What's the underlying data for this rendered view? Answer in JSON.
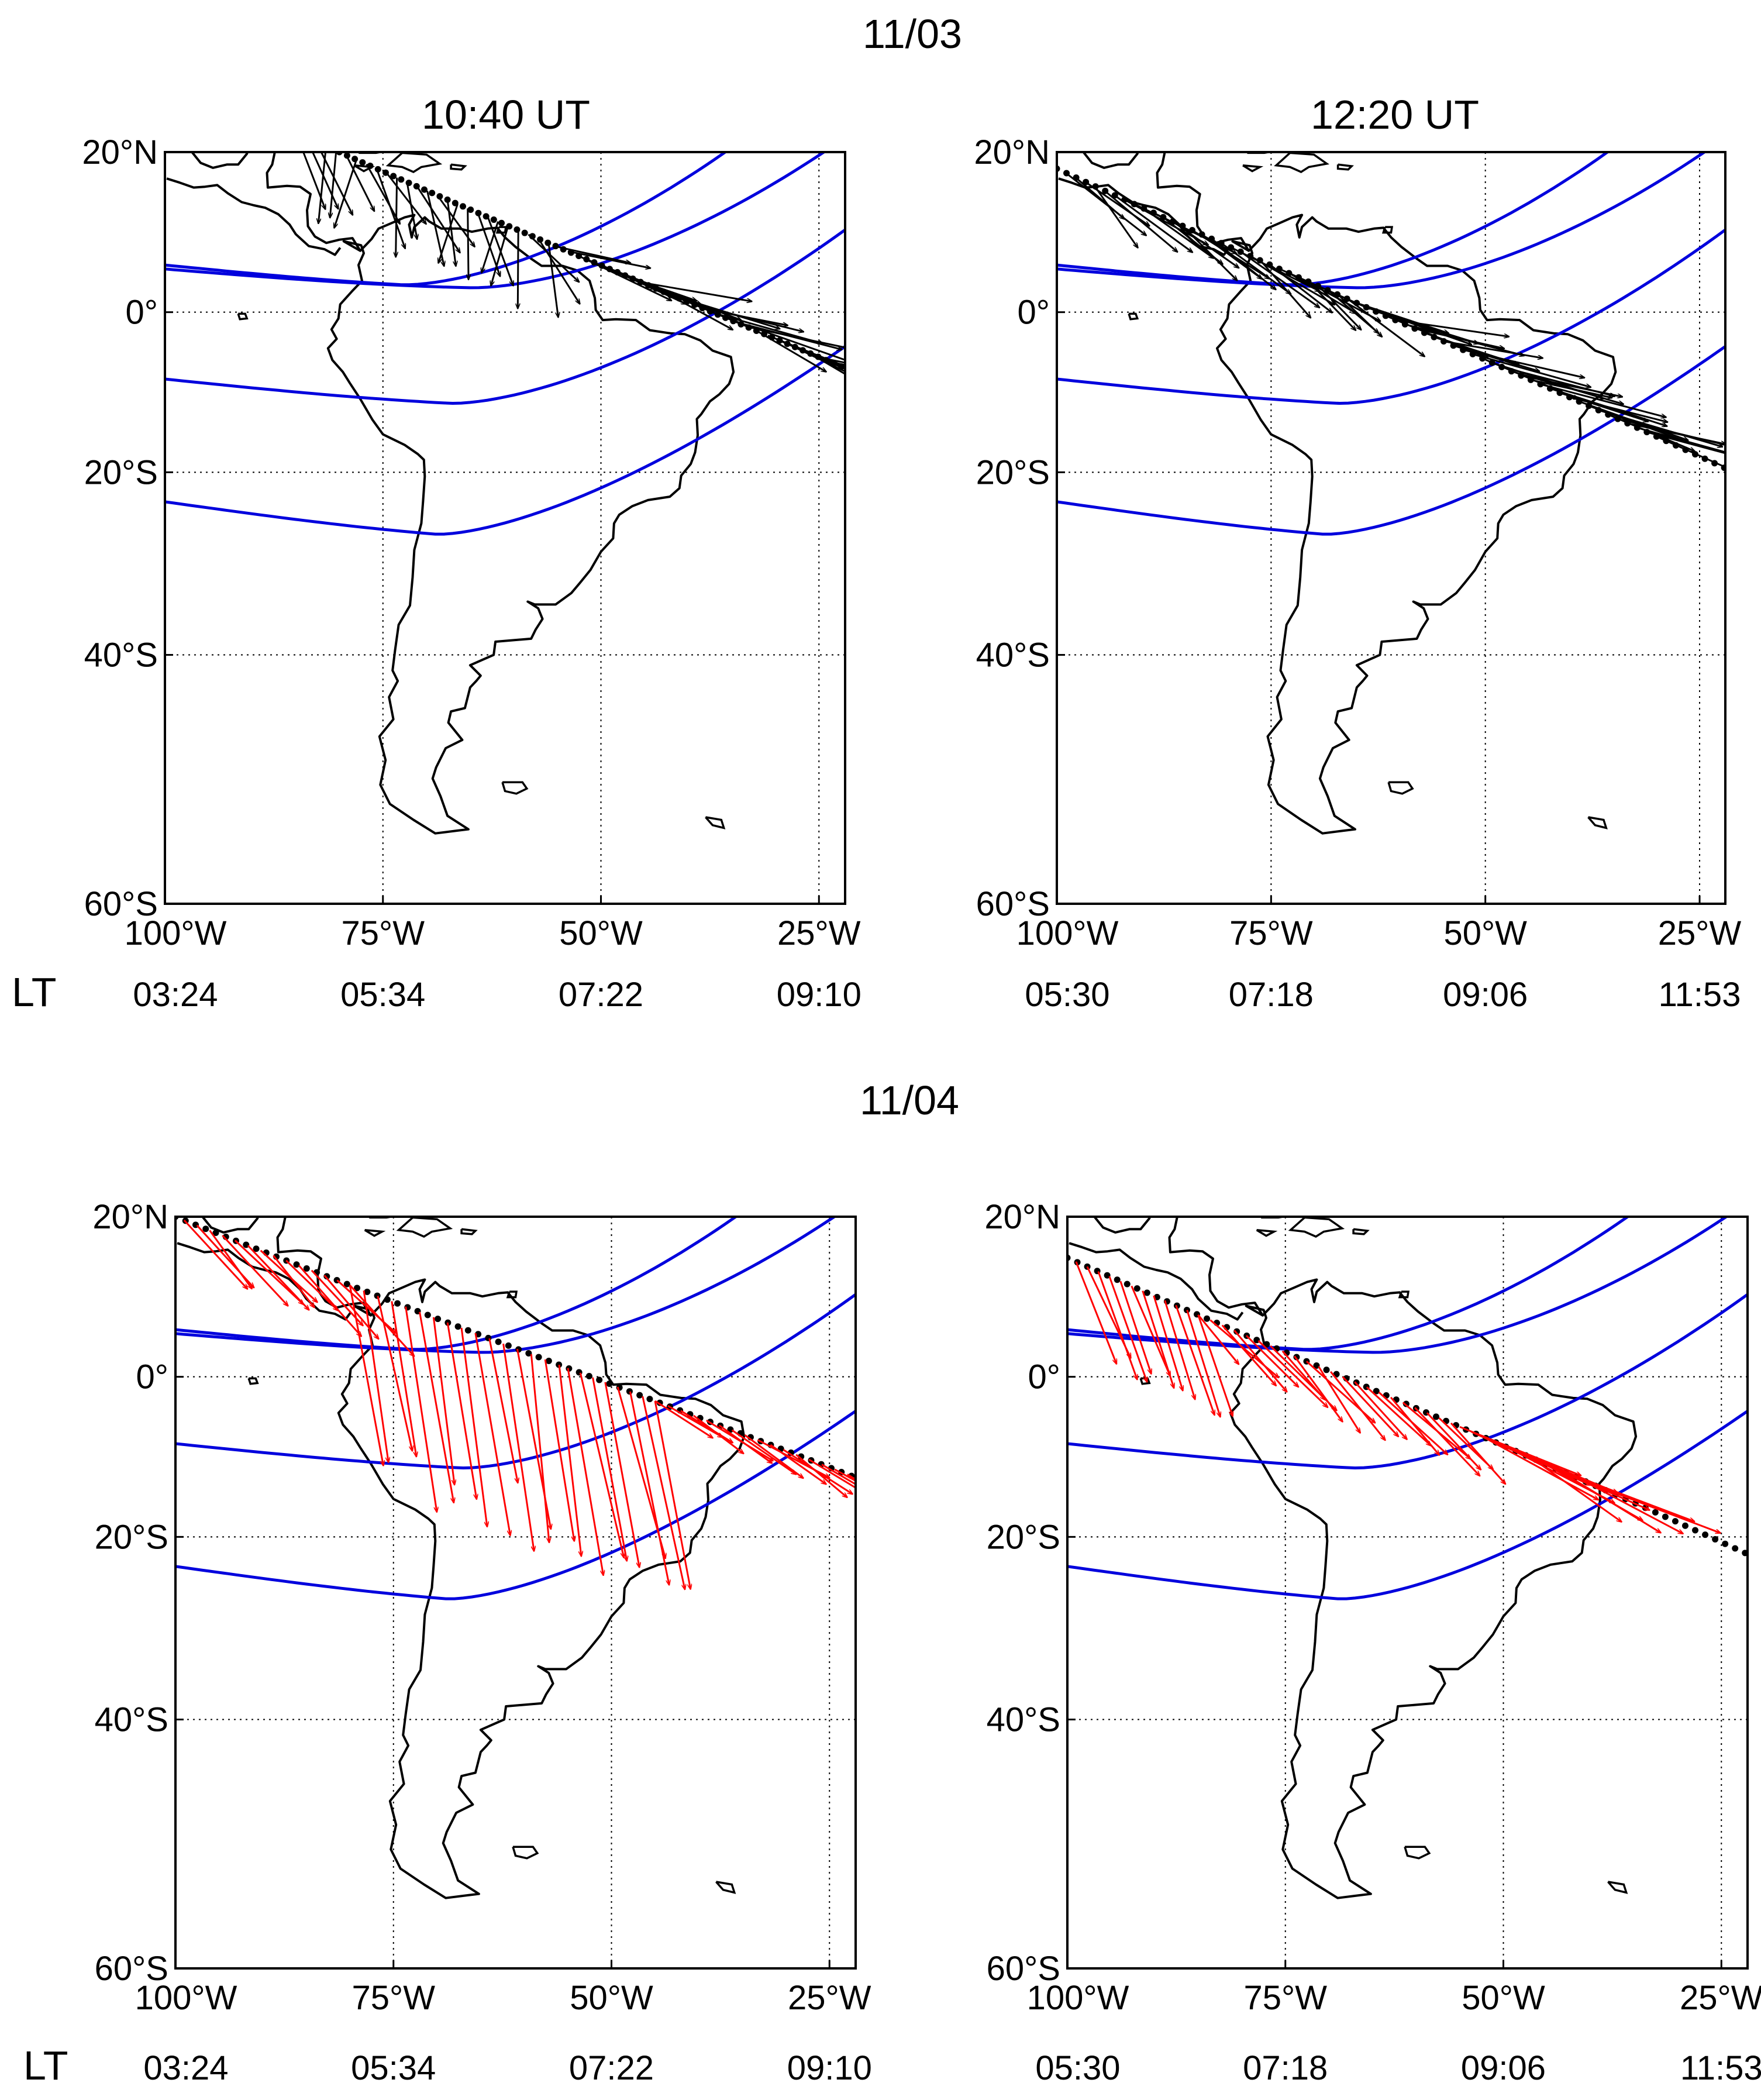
{
  "figure": {
    "date_labels": [
      "11/03",
      "11/04"
    ],
    "lt_label": "LT",
    "lat_ticks": [
      "20°N",
      "0°",
      "20°S",
      "40°S",
      "60°S"
    ],
    "lon_ticks": [
      "100°W",
      "75°W",
      "50°W",
      "25°W"
    ],
    "colors": {
      "contour": "#0000dd",
      "vector_1103": "#000000",
      "vector_1104": "#ff0000",
      "track": "#000000"
    }
  },
  "panels": [
    {
      "id": "top-left",
      "title": "10:40 UT",
      "lt_values": [
        "03:24",
        "05:34",
        "07:22",
        "09:10"
      ],
      "vector_color": "#000000",
      "track": {
        "from": [
          -80,
          20
        ],
        "to": [
          -18,
          -9
        ]
      },
      "vector_segments": [
        {
          "from_lon": -85,
          "to_lon": -56,
          "count": 26,
          "dx_range": [
            -7,
            6
          ],
          "dy_range": [
            -12,
            -6
          ]
        },
        {
          "from_lon": -55,
          "to_lon": -20,
          "count": 30,
          "dx_range": [
            4,
            15
          ],
          "dy_range": [
            -8,
            -2
          ]
        }
      ]
    },
    {
      "id": "top-right",
      "title": "12:20 UT",
      "lt_values": [
        "05:30",
        "07:18",
        "09:06",
        "11:53"
      ],
      "vector_color": "#000000",
      "track": {
        "from": [
          -100,
          18
        ],
        "to": [
          -21,
          -20
        ]
      },
      "vector_segments": [
        {
          "from_lon": -99,
          "to_lon": -66,
          "count": 30,
          "dx_range": [
            2,
            11
          ],
          "dy_range": [
            -9,
            -5
          ]
        },
        {
          "from_lon": -65,
          "to_lon": -30,
          "count": 32,
          "dx_range": [
            6,
            15
          ],
          "dy_range": [
            -7,
            -2
          ]
        }
      ]
    },
    {
      "id": "bottom-left",
      "title": "",
      "lt_values": [
        "03:24",
        "05:34",
        "07:22",
        "09:10"
      ],
      "vector_color": "#ff0000",
      "track": {
        "from": [
          -100,
          20
        ],
        "to": [
          -19,
          -14
        ]
      },
      "vector_segments": [
        {
          "from_lon": -99,
          "to_lon": -80,
          "count": 14,
          "dx_range": [
            3,
            8
          ],
          "dy_range": [
            -5,
            -9
          ]
        },
        {
          "from_lon": -80,
          "to_lon": -56,
          "count": 16,
          "dx_range": [
            1,
            4
          ],
          "dy_range": [
            -13,
            -26
          ]
        },
        {
          "from_lon": -55,
          "to_lon": -45,
          "count": 8,
          "dx_range": [
            3,
            6
          ],
          "dy_range": [
            -18,
            -28
          ]
        },
        {
          "from_lon": -45,
          "to_lon": -20,
          "count": 18,
          "dx_range": [
            4,
            9
          ],
          "dy_range": [
            -2,
            -6
          ]
        }
      ]
    },
    {
      "id": "bottom-right",
      "title": "",
      "lt_values": [
        "05:30",
        "07:18",
        "09:06",
        "11:53"
      ],
      "vector_color": "#ff0000",
      "track": {
        "from": [
          -100,
          15
        ],
        "to": [
          -20,
          -23
        ]
      },
      "vector_segments": [
        {
          "from_lon": -99,
          "to_lon": -85,
          "count": 12,
          "dx_range": [
            2,
            5
          ],
          "dy_range": [
            -10,
            -14
          ]
        },
        {
          "from_lon": -85,
          "to_lon": -56,
          "count": 22,
          "dx_range": [
            3,
            8
          ],
          "dy_range": [
            -5,
            -9
          ]
        },
        {
          "from_lon": -55,
          "to_lon": -40,
          "count": 12,
          "dx_range": [
            8,
            15
          ],
          "dy_range": [
            -5,
            -8
          ]
        }
      ]
    }
  ]
}
